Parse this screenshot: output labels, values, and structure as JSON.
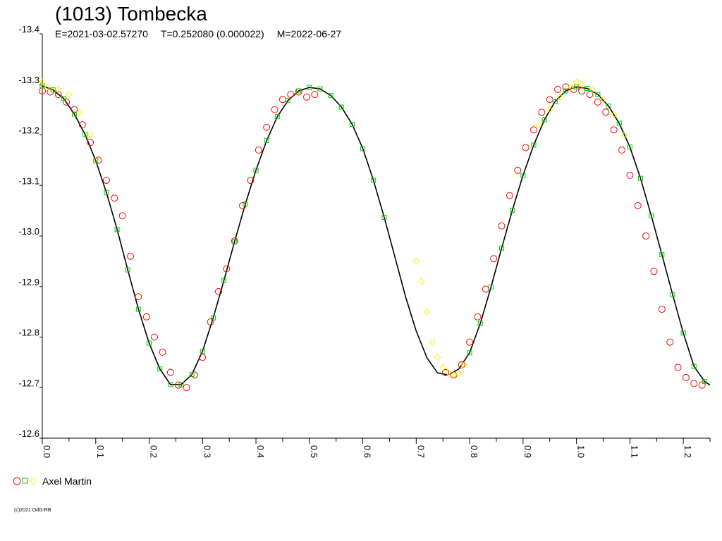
{
  "header": {
    "title": "(1013) Tombecka",
    "epoch": "E=2021-03-02.57270",
    "period": "T=0.252080 (0.000022)",
    "modified": "M=2022-06-27"
  },
  "legend": {
    "observer": "Axel Martin"
  },
  "footer": {
    "copyright": "(c)2021 OdG-RB"
  },
  "colors": {
    "circle": "#ff0000",
    "square": "#00cc00",
    "diamond": "#ffee00",
    "curve": "#000000"
  },
  "chart_data": {
    "type": "scatter",
    "title": "(1013) Tombecka",
    "xlabel": "",
    "ylabel": "",
    "xlim": [
      0.0,
      1.25
    ],
    "ylim": [
      -13.4,
      -12.6
    ],
    "y_inverted": true,
    "grid": false,
    "legend_position": "bottom-left",
    "x_ticks": [
      "0.0",
      "0.1",
      "0.2",
      "0.3",
      "0.4",
      "0.5",
      "0.6",
      "0.7",
      "0.8",
      "0.9",
      "1.0",
      "1.1",
      "1.2"
    ],
    "y_ticks": [
      "-13.4",
      "-13.3",
      "-13.2",
      "-13.1",
      "-13.0",
      "-12.9",
      "-12.8",
      "-12.7",
      "-12.6"
    ],
    "fit_curve": {
      "x": [
        0.0,
        0.02,
        0.04,
        0.06,
        0.08,
        0.1,
        0.12,
        0.14,
        0.16,
        0.18,
        0.2,
        0.22,
        0.24,
        0.26,
        0.28,
        0.3,
        0.32,
        0.34,
        0.36,
        0.38,
        0.4,
        0.42,
        0.44,
        0.46,
        0.48,
        0.5,
        0.52,
        0.54,
        0.56,
        0.58,
        0.6,
        0.62,
        0.64,
        0.66,
        0.68,
        0.7,
        0.72,
        0.74,
        0.76,
        0.78,
        0.8,
        0.82,
        0.84,
        0.86,
        0.88,
        0.9,
        0.92,
        0.94,
        0.96,
        0.98,
        1.0,
        1.02,
        1.04,
        1.06,
        1.08,
        1.1,
        1.12,
        1.14,
        1.16,
        1.18,
        1.2,
        1.22,
        1.24,
        1.25
      ],
      "y": [
        -13.297,
        -13.289,
        -13.272,
        -13.241,
        -13.201,
        -13.149,
        -13.086,
        -13.013,
        -12.933,
        -12.855,
        -12.788,
        -12.737,
        -12.706,
        -12.706,
        -12.726,
        -12.772,
        -12.838,
        -12.912,
        -12.989,
        -13.063,
        -13.13,
        -13.189,
        -13.236,
        -13.268,
        -13.287,
        -13.294,
        -13.291,
        -13.278,
        -13.255,
        -13.221,
        -13.173,
        -13.11,
        -13.037,
        -12.959,
        -12.88,
        -12.812,
        -12.759,
        -12.729,
        -12.725,
        -12.737,
        -12.769,
        -12.827,
        -12.899,
        -12.976,
        -13.051,
        -13.12,
        -13.18,
        -13.23,
        -13.266,
        -13.287,
        -13.295,
        -13.292,
        -13.28,
        -13.257,
        -13.223,
        -13.176,
        -13.114,
        -13.04,
        -12.963,
        -12.884,
        -12.808,
        -12.742,
        -12.712,
        -12.705
      ]
    },
    "series": [
      {
        "marker": "circle",
        "x": [
          0.0,
          0.015,
          0.03,
          0.045,
          0.06,
          0.075,
          0.09,
          0.105,
          0.12,
          0.135,
          0.15,
          0.165,
          0.18,
          0.195,
          0.21,
          0.225,
          0.24,
          0.255,
          0.27,
          0.285,
          0.3,
          0.315,
          0.33,
          0.345,
          0.36,
          0.375,
          0.39,
          0.405,
          0.42,
          0.435,
          0.45,
          0.465,
          0.48,
          0.495,
          0.51,
          0.755,
          0.77,
          0.785,
          0.8,
          0.815,
          0.83,
          0.845,
          0.86,
          0.875,
          0.89,
          0.905,
          0.92,
          0.935,
          0.95,
          0.965,
          0.98,
          0.995,
          1.01,
          1.025,
          1.04,
          1.055,
          1.07,
          1.085,
          1.1,
          1.115,
          1.13,
          1.145,
          1.16,
          1.175,
          1.19,
          1.205,
          1.22,
          1.235
        ],
        "y": [
          -13.287,
          -13.285,
          -13.28,
          -13.265,
          -13.25,
          -13.22,
          -13.185,
          -13.15,
          -13.11,
          -13.075,
          -13.04,
          -12.96,
          -12.88,
          -12.84,
          -12.8,
          -12.77,
          -12.73,
          -12.705,
          -12.7,
          -12.725,
          -12.76,
          -12.83,
          -12.89,
          -12.935,
          -12.99,
          -13.06,
          -13.11,
          -13.17,
          -13.215,
          -13.25,
          -13.27,
          -13.28,
          -13.285,
          -13.275,
          -13.28,
          -12.73,
          -12.725,
          -12.745,
          -12.79,
          -12.84,
          -12.895,
          -12.955,
          -13.02,
          -13.08,
          -13.13,
          -13.175,
          -13.21,
          -13.245,
          -13.27,
          -13.29,
          -13.295,
          -13.29,
          -13.287,
          -13.28,
          -13.265,
          -13.245,
          -13.21,
          -13.17,
          -13.12,
          -13.06,
          -13.0,
          -12.93,
          -12.855,
          -12.79,
          -12.74,
          -12.72,
          -12.708,
          -12.705
        ]
      },
      {
        "marker": "square",
        "x": [
          0.0,
          0.02,
          0.04,
          0.06,
          0.08,
          0.1,
          0.12,
          0.14,
          0.16,
          0.18,
          0.2,
          0.22,
          0.24,
          0.26,
          0.28,
          0.3,
          0.32,
          0.34,
          0.36,
          0.38,
          0.4,
          0.42,
          0.44,
          0.46,
          0.48,
          0.5,
          0.52,
          0.54,
          0.56,
          0.58,
          0.6,
          0.62,
          0.64,
          0.8,
          0.82,
          0.84,
          0.86,
          0.88,
          0.9,
          0.92,
          0.94,
          0.96,
          0.98,
          1.0,
          1.02,
          1.04,
          1.06,
          1.08,
          1.1,
          1.12,
          1.14,
          1.16,
          1.18,
          1.2,
          1.22,
          1.24
        ],
        "y": [
          -13.297,
          -13.289,
          -13.272,
          -13.241,
          -13.201,
          -13.149,
          -13.086,
          -13.013,
          -12.933,
          -12.855,
          -12.788,
          -12.737,
          -12.706,
          -12.706,
          -12.726,
          -12.772,
          -12.838,
          -12.912,
          -12.989,
          -13.063,
          -13.13,
          -13.189,
          -13.236,
          -13.268,
          -13.287,
          -13.294,
          -13.291,
          -13.278,
          -13.255,
          -13.221,
          -13.173,
          -13.11,
          -13.037,
          -12.769,
          -12.827,
          -12.899,
          -12.976,
          -13.051,
          -13.12,
          -13.18,
          -13.23,
          -13.266,
          -13.287,
          -13.295,
          -13.292,
          -13.28,
          -13.257,
          -13.223,
          -13.176,
          -13.114,
          -13.04,
          -12.963,
          -12.884,
          -12.808,
          -12.742,
          -12.712
        ]
      },
      {
        "marker": "diamond",
        "x": [
          0.0,
          0.01,
          0.03,
          0.05,
          0.07,
          0.09,
          0.7,
          0.71,
          0.72,
          0.73,
          0.74,
          0.75,
          0.76,
          0.77,
          0.78,
          0.79,
          0.93,
          0.95,
          0.97,
          0.99,
          1.0,
          1.01,
          1.03,
          1.05,
          1.07,
          1.09
        ],
        "y": [
          -13.305,
          -13.295,
          -13.29,
          -13.28,
          -13.245,
          -13.2,
          -12.95,
          -12.91,
          -12.85,
          -12.79,
          -12.76,
          -12.74,
          -12.73,
          -12.725,
          -12.728,
          -12.745,
          -13.22,
          -13.25,
          -13.275,
          -13.295,
          -13.305,
          -13.3,
          -13.29,
          -13.27,
          -13.24,
          -13.2
        ]
      }
    ]
  }
}
